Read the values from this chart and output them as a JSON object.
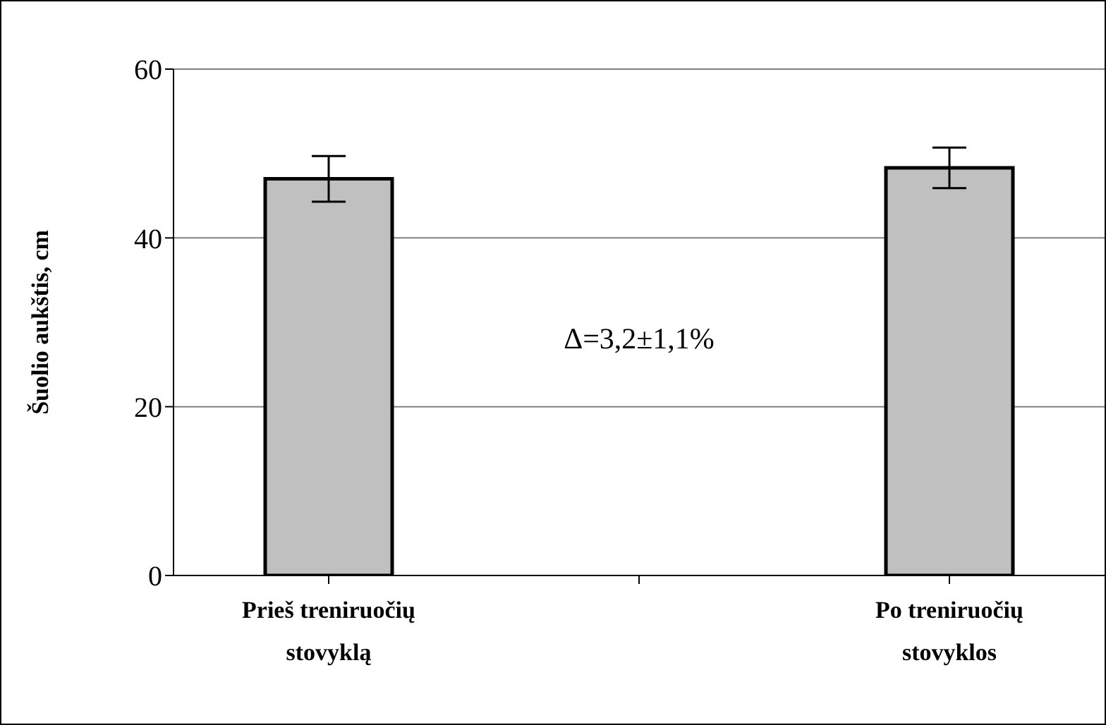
{
  "chart_data": {
    "type": "bar",
    "ylabel": "Šuolio aukštis, cm",
    "categories": [
      "Prieš treniruočių stovyklą",
      null,
      "Po treniruočių stovyklos"
    ],
    "values": [
      47.0,
      null,
      48.3
    ],
    "errors": [
      2.7,
      null,
      2.4
    ],
    "color": "#c0c0c0",
    "ylim": [
      0,
      60
    ],
    "yticks": [
      0,
      20,
      40,
      60
    ],
    "grid": "y",
    "annotations": [
      "Δ=3,2±1,1%"
    ]
  }
}
